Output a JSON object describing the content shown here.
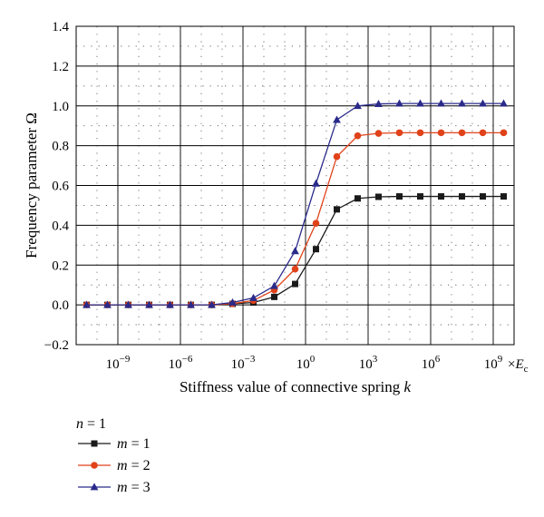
{
  "chart_data": {
    "type": "line",
    "xlabel": "Stiffness value of connective spring",
    "xlabel_var": "k",
    "ylabel": "Frequency parameter Ω",
    "x_scale": "log10",
    "x_unit": "E",
    "x_unit_sub": "c",
    "x_unit_prefix": "×",
    "xlim": [
      1e-11,
      10000000000.0
    ],
    "ylim": [
      -0.2,
      1.4
    ],
    "x_ticks": [
      {
        "exp": -9,
        "base": "10",
        "sup": "−9"
      },
      {
        "exp": -6,
        "base": "10",
        "sup": "−6"
      },
      {
        "exp": -3,
        "base": "10",
        "sup": "−3"
      },
      {
        "exp": 0,
        "base": "10",
        "sup": "0"
      },
      {
        "exp": 3,
        "base": "10",
        "sup": "3"
      },
      {
        "exp": 6,
        "base": "10",
        "sup": "6"
      },
      {
        "exp": 9,
        "base": "10",
        "sup": "9"
      }
    ],
    "y_ticks": [
      "−0.2",
      "0.0",
      "0.2",
      "0.4",
      "0.6",
      "0.8",
      "1.0",
      "1.2",
      "1.4"
    ],
    "y_tick_values": [
      -0.2,
      0.0,
      0.2,
      0.4,
      0.6,
      0.8,
      1.0,
      1.2,
      1.4
    ],
    "grid": true,
    "legend": {
      "placement": "below",
      "title_var": "n",
      "title_rest": " = 1",
      "entries": [
        {
          "var": "m",
          "rest": " = 1"
        },
        {
          "var": "m",
          "rest": " = 2"
        },
        {
          "var": "m",
          "rest": " = 3"
        }
      ]
    },
    "x_exponents": [
      -10.5,
      -9.5,
      -8.5,
      -7.5,
      -6.5,
      -5.5,
      -4.5,
      -3.5,
      -2.5,
      -1.5,
      -0.5,
      0.5,
      1.5,
      2.5,
      3.5,
      4.5,
      5.5,
      6.5,
      7.5,
      8.5,
      9.5
    ],
    "series": [
      {
        "marker": "square",
        "color": "#1a1a1a",
        "values": [
          0.0,
          0.0,
          0.0,
          0.0,
          0.0,
          0.0,
          0.0,
          0.005,
          0.012,
          0.04,
          0.105,
          0.28,
          0.48,
          0.535,
          0.543,
          0.545,
          0.545,
          0.545,
          0.545,
          0.545,
          0.545
        ]
      },
      {
        "marker": "circle",
        "color": "#e0421a",
        "values": [
          0.0,
          0.0,
          0.0,
          0.0,
          0.0,
          0.0,
          0.0,
          0.006,
          0.022,
          0.075,
          0.18,
          0.41,
          0.745,
          0.85,
          0.862,
          0.865,
          0.865,
          0.865,
          0.865,
          0.865,
          0.865
        ]
      },
      {
        "marker": "triangle",
        "color": "#2a2a8a",
        "values": [
          0.0,
          0.0,
          0.0,
          0.0,
          0.0,
          0.0,
          0.0,
          0.012,
          0.035,
          0.095,
          0.27,
          0.61,
          0.93,
          1.0,
          1.01,
          1.012,
          1.012,
          1.012,
          1.012,
          1.012,
          1.012
        ]
      }
    ]
  }
}
